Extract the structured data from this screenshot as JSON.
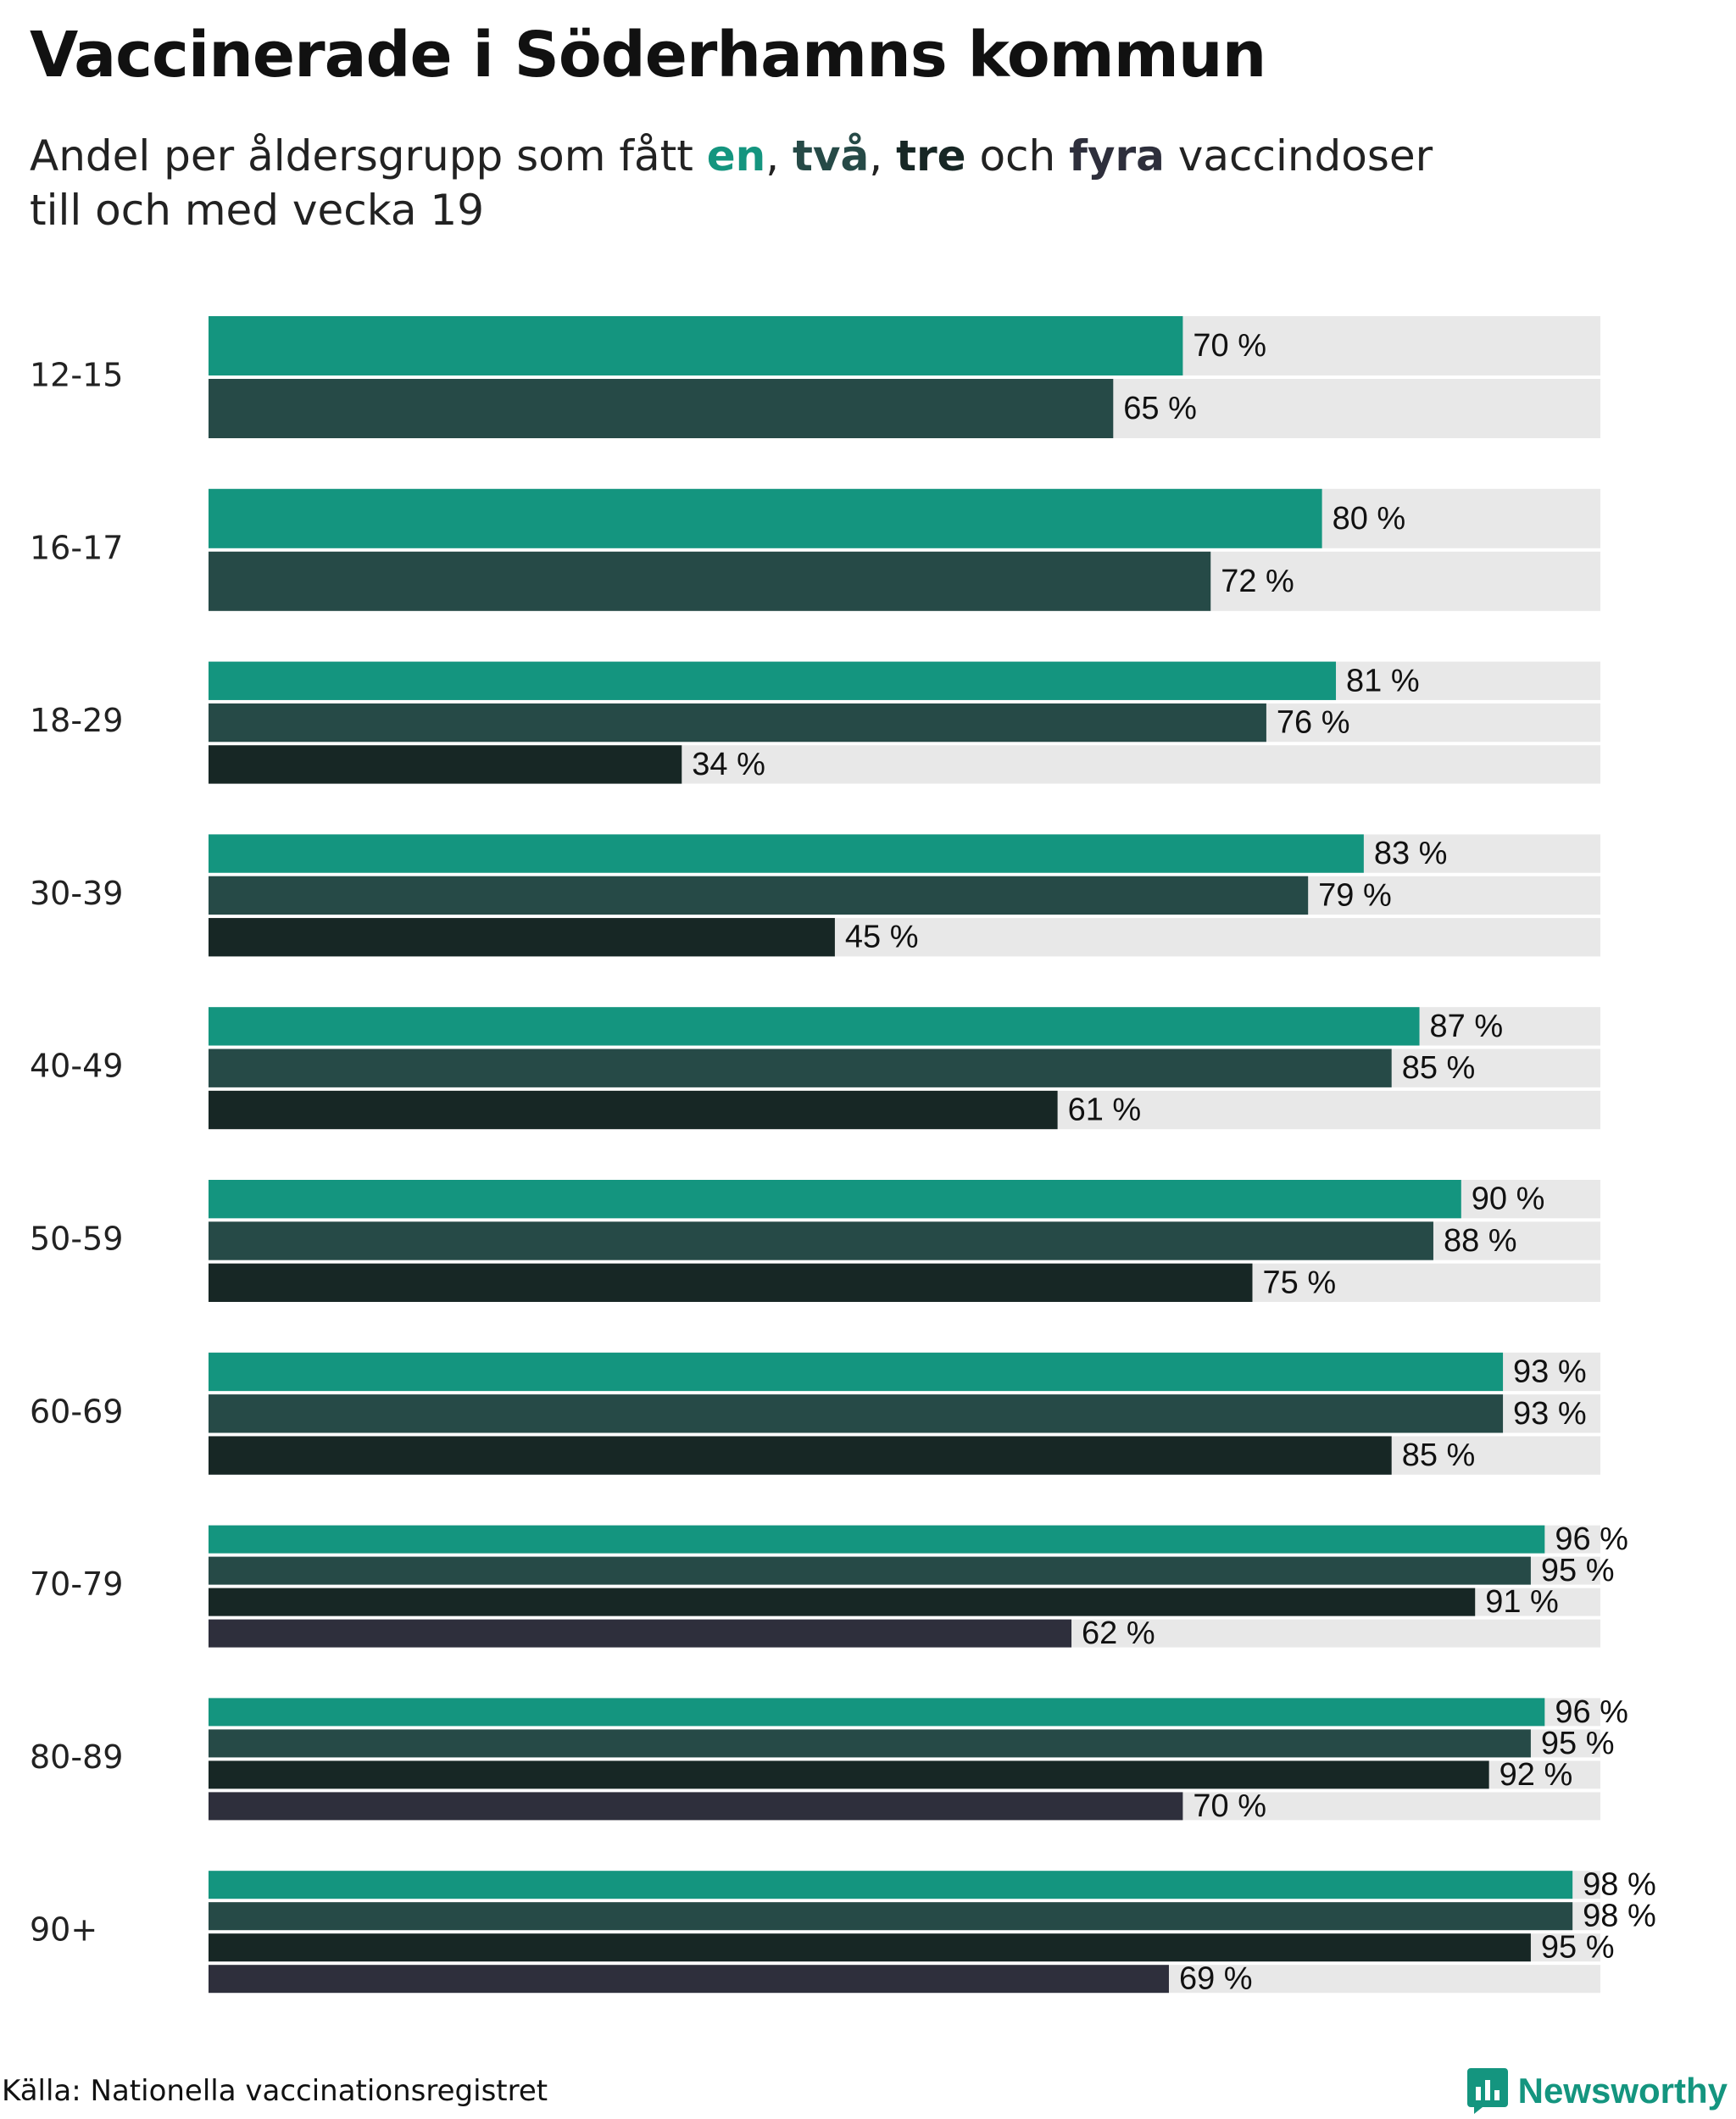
{
  "title": "Vaccinerade i Söderhamns kommun",
  "subtitle": {
    "prefix": "Andel per åldersgrupp som fått ",
    "dose1": "en",
    "sep1": ", ",
    "dose2": "två",
    "sep2": ", ",
    "dose3": "tre",
    "conj": " och ",
    "dose4": "fyra",
    "suffix": " vaccindoser",
    "line2": "till och med vecka 19"
  },
  "colors": {
    "dose1": "#14957f",
    "dose2": "#264a47",
    "dose3": "#172725",
    "dose4": "#2e2f3c",
    "track": "#e8e8e8",
    "brand": "#14957f"
  },
  "chart_data": {
    "type": "bar",
    "orientation": "horizontal",
    "value_suffix": " %",
    "xlim": [
      0,
      100
    ],
    "grid": false,
    "legend": "in subtitle (colored words)",
    "categories": [
      "12-15",
      "16-17",
      "18-29",
      "30-39",
      "40-49",
      "50-59",
      "60-69",
      "70-79",
      "80-89",
      "90+"
    ],
    "series": [
      {
        "name": "en",
        "values": [
          70,
          80,
          81,
          83,
          87,
          90,
          93,
          96,
          96,
          98
        ]
      },
      {
        "name": "två",
        "values": [
          65,
          72,
          76,
          79,
          85,
          88,
          93,
          95,
          95,
          98
        ]
      },
      {
        "name": "tre",
        "values": [
          null,
          null,
          34,
          45,
          61,
          75,
          85,
          91,
          92,
          95
        ]
      },
      {
        "name": "fyra",
        "values": [
          null,
          null,
          null,
          null,
          null,
          null,
          null,
          62,
          70,
          69
        ]
      }
    ]
  },
  "footer": {
    "source": "Källa: Nationella vaccinationsregistret",
    "brand": "Newsworthy",
    "brand_icon": "bar-chart-logo-icon"
  }
}
